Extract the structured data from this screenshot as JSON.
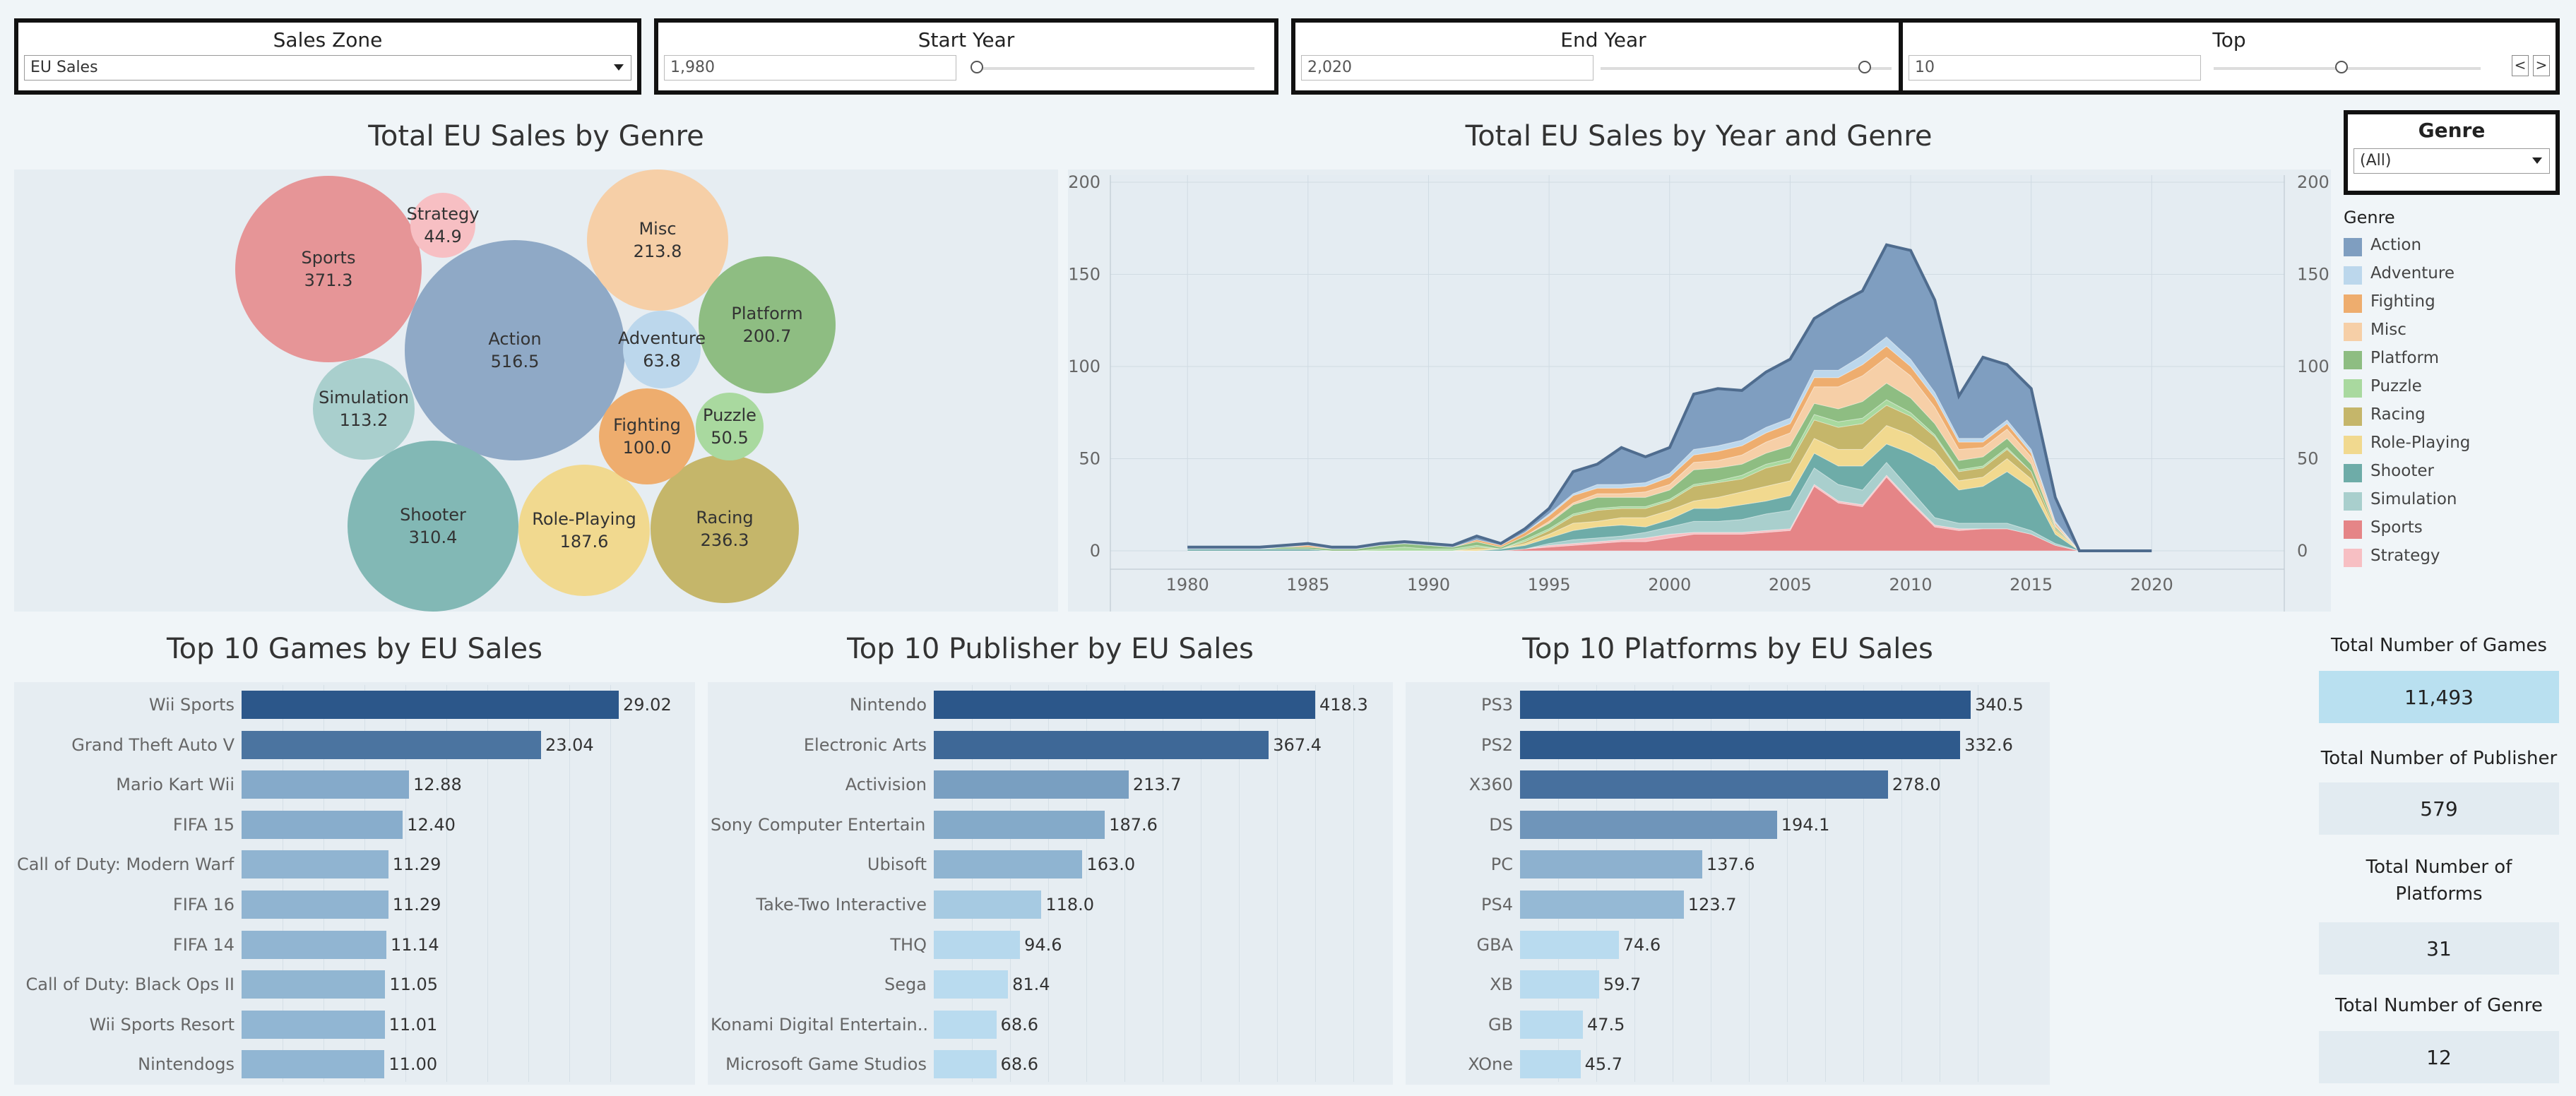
{
  "filters": {
    "sales_zone": {
      "title": "Sales Zone",
      "value": "EU Sales"
    },
    "start_year": {
      "title": "Start Year",
      "value": "1,980"
    },
    "end_year": {
      "title": "End Year",
      "value": "2,020"
    },
    "top": {
      "title": "Top",
      "value": "10",
      "prev": "<",
      "next": ">"
    },
    "genre": {
      "title": "Genre",
      "value": "(All)"
    }
  },
  "bubble_chart": {
    "title": "Total EU Sales by Genre",
    "bubbles": [
      {
        "name": "Action",
        "value": "516.5",
        "color": "#8fa9c6"
      },
      {
        "name": "Sports",
        "value": "371.3",
        "color": "#e69597"
      },
      {
        "name": "Shooter",
        "value": "310.4",
        "color": "#82b8b5"
      },
      {
        "name": "Racing",
        "value": "236.3",
        "color": "#c5b66a"
      },
      {
        "name": "Misc",
        "value": "213.8",
        "color": "#f6cfa7"
      },
      {
        "name": "Platform",
        "value": "200.7",
        "color": "#8ebd82"
      },
      {
        "name": "Role-Playing",
        "value": "187.6",
        "color": "#f1d98f"
      },
      {
        "name": "Simulation",
        "value": "113.2",
        "color": "#a9cfcd"
      },
      {
        "name": "Fighting",
        "value": "100.0",
        "color": "#eead6e"
      },
      {
        "name": "Adventure",
        "value": "63.8",
        "color": "#bcd7ec"
      },
      {
        "name": "Puzzle",
        "value": "50.5",
        "color": "#a9d99f"
      },
      {
        "name": "Strategy",
        "value": "44.9",
        "color": "#f7bfc3"
      }
    ]
  },
  "area_chart": {
    "title": "Total EU Sales by Year and Genre"
  },
  "legend": {
    "title": "Genre",
    "items": [
      {
        "label": "Action",
        "color": "#7f9ec0"
      },
      {
        "label": "Adventure",
        "color": "#bcd7ec"
      },
      {
        "label": "Fighting",
        "color": "#eead6e"
      },
      {
        "label": "Misc",
        "color": "#f6cfa7"
      },
      {
        "label": "Platform",
        "color": "#8ebd82"
      },
      {
        "label": "Puzzle",
        "color": "#a9d99f"
      },
      {
        "label": "Racing",
        "color": "#c5b66a"
      },
      {
        "label": "Role-Playing",
        "color": "#f1d98f"
      },
      {
        "label": "Shooter",
        "color": "#6eaca8"
      },
      {
        "label": "Simulation",
        "color": "#a9cfcd"
      },
      {
        "label": "Sports",
        "color": "#e58587"
      },
      {
        "label": "Strategy",
        "color": "#f7bfc3"
      }
    ]
  },
  "games_chart": {
    "title": "Top 10 Games by EU Sales",
    "rows": [
      {
        "label": "Wii Sports",
        "value": "29.02"
      },
      {
        "label": "Grand Theft Auto V",
        "value": "23.04"
      },
      {
        "label": "Mario Kart Wii",
        "value": "12.88"
      },
      {
        "label": "FIFA 15",
        "value": "12.40"
      },
      {
        "label": "Call of Duty: Modern Warf..",
        "value": "11.29"
      },
      {
        "label": "FIFA 16",
        "value": "11.29"
      },
      {
        "label": "FIFA 14",
        "value": "11.14"
      },
      {
        "label": "Call of Duty: Black Ops II",
        "value": "11.05"
      },
      {
        "label": "Wii Sports Resort",
        "value": "11.01"
      },
      {
        "label": "Nintendogs",
        "value": "11.00"
      }
    ]
  },
  "publisher_chart": {
    "title": "Top 10 Publisher by EU Sales",
    "rows": [
      {
        "label": "Nintendo",
        "value": "418.3"
      },
      {
        "label": "Electronic Arts",
        "value": "367.4"
      },
      {
        "label": "Activision",
        "value": "213.7"
      },
      {
        "label": "Sony Computer Entertain..",
        "value": "187.6"
      },
      {
        "label": "Ubisoft",
        "value": "163.0"
      },
      {
        "label": "Take-Two Interactive",
        "value": "118.0"
      },
      {
        "label": "THQ",
        "value": "94.6"
      },
      {
        "label": "Sega",
        "value": "81.4"
      },
      {
        "label": "Konami Digital Entertain..",
        "value": "68.6"
      },
      {
        "label": "Microsoft Game Studios",
        "value": "68.6"
      }
    ]
  },
  "platform_chart": {
    "title": "Top 10 Platforms by EU Sales",
    "rows": [
      {
        "label": "PS3",
        "value": "340.5"
      },
      {
        "label": "PS2",
        "value": "332.6"
      },
      {
        "label": "X360",
        "value": "278.0"
      },
      {
        "label": "DS",
        "value": "194.1"
      },
      {
        "label": "PC",
        "value": "137.6"
      },
      {
        "label": "PS4",
        "value": "123.7"
      },
      {
        "label": "GBA",
        "value": "74.6"
      },
      {
        "label": "XB",
        "value": "59.7"
      },
      {
        "label": "GB",
        "value": "47.5"
      },
      {
        "label": "XOne",
        "value": "45.7"
      }
    ]
  },
  "kpis": [
    {
      "title": "Total Number of Games",
      "value": "11,493"
    },
    {
      "title": "Total Number of Publisher",
      "value": "579"
    },
    {
      "title": "Total Number of Platforms",
      "value": "31"
    },
    {
      "title": "Total Number of Genre",
      "value": "12"
    }
  ],
  "chart_data": [
    {
      "type": "bubble",
      "title": "Total EU Sales by Genre",
      "categories": [
        "Action",
        "Sports",
        "Shooter",
        "Racing",
        "Misc",
        "Platform",
        "Role-Playing",
        "Simulation",
        "Fighting",
        "Adventure",
        "Puzzle",
        "Strategy"
      ],
      "values": [
        516.5,
        371.3,
        310.4,
        236.3,
        213.8,
        200.7,
        187.6,
        113.2,
        100.0,
        63.8,
        50.5,
        44.9
      ]
    },
    {
      "type": "area",
      "title": "Total EU Sales by Year and Genre",
      "x": [
        1980,
        1981,
        1982,
        1983,
        1984,
        1985,
        1986,
        1987,
        1988,
        1989,
        1990,
        1991,
        1992,
        1993,
        1994,
        1995,
        1996,
        1997,
        1998,
        1999,
        2000,
        2001,
        2002,
        2003,
        2004,
        2005,
        2006,
        2007,
        2008,
        2009,
        2010,
        2011,
        2012,
        2013,
        2014,
        2015,
        2016,
        2017,
        2018,
        2019,
        2020
      ],
      "xticks": [
        1980,
        1985,
        1990,
        1995,
        2000,
        2005,
        2010,
        2015,
        2020
      ],
      "ylim": [
        0,
        200
      ],
      "yticks": [
        0,
        50,
        100,
        150,
        200
      ],
      "stack_order": [
        "Sports",
        "Strategy",
        "Simulation",
        "Shooter",
        "Role-Playing",
        "Racing",
        "Puzzle",
        "Platform",
        "Misc",
        "Fighting",
        "Adventure",
        "Action"
      ],
      "series": [
        {
          "name": "Sports",
          "values": [
            0,
            0,
            0,
            0,
            0,
            0,
            0,
            0,
            0,
            0,
            0,
            0,
            0,
            0,
            1,
            2,
            3,
            4,
            5,
            5,
            7,
            9,
            9,
            9,
            10,
            11,
            35,
            26,
            24,
            40,
            26,
            13,
            11,
            12,
            12,
            9,
            3,
            0,
            0,
            0,
            0
          ]
        },
        {
          "name": "Strategy",
          "values": [
            0,
            0,
            0,
            0,
            0,
            0,
            0,
            0,
            0,
            0,
            0,
            0,
            0,
            0,
            0,
            1,
            1,
            1,
            1,
            2,
            2,
            1,
            1,
            1,
            1,
            1,
            1,
            1,
            1,
            1,
            1,
            1,
            1,
            0,
            0,
            0,
            0,
            0,
            0,
            0,
            0
          ]
        },
        {
          "name": "Simulation",
          "values": [
            0,
            0,
            0,
            0,
            0,
            0,
            0,
            0,
            0,
            0,
            0,
            0,
            0,
            0,
            0,
            1,
            2,
            2,
            2,
            3,
            4,
            6,
            6,
            7,
            9,
            10,
            9,
            9,
            8,
            7,
            6,
            4,
            3,
            3,
            3,
            2,
            1,
            0,
            0,
            0,
            0
          ]
        },
        {
          "name": "Shooter",
          "values": [
            1,
            1,
            1,
            1,
            1,
            1,
            0,
            0,
            0,
            0,
            0,
            0,
            0,
            1,
            2,
            3,
            5,
            6,
            6,
            3,
            4,
            7,
            7,
            8,
            7,
            8,
            8,
            10,
            13,
            10,
            20,
            28,
            18,
            20,
            28,
            23,
            5,
            0,
            0,
            0,
            0
          ]
        },
        {
          "name": "Role-Playing",
          "values": [
            0,
            0,
            0,
            0,
            0,
            0,
            0,
            0,
            0,
            0,
            0,
            0,
            1,
            0,
            1,
            2,
            4,
            3,
            4,
            5,
            5,
            4,
            6,
            7,
            8,
            8,
            8,
            9,
            9,
            10,
            10,
            8,
            5,
            5,
            7,
            5,
            2,
            0,
            0,
            0,
            0
          ]
        },
        {
          "name": "Racing",
          "values": [
            0,
            0,
            0,
            0,
            0,
            0,
            0,
            0,
            0,
            0,
            0,
            0,
            1,
            0,
            1,
            2,
            4,
            6,
            5,
            5,
            5,
            8,
            8,
            7,
            10,
            10,
            10,
            12,
            14,
            11,
            10,
            8,
            5,
            5,
            5,
            4,
            1,
            0,
            0,
            0,
            0
          ]
        },
        {
          "name": "Puzzle",
          "values": [
            0,
            0,
            0,
            0,
            0,
            0,
            0,
            0,
            1,
            2,
            1,
            1,
            1,
            0,
            1,
            1,
            1,
            1,
            1,
            1,
            1,
            1,
            1,
            2,
            2,
            2,
            3,
            3,
            3,
            3,
            2,
            1,
            1,
            1,
            1,
            0,
            0,
            0,
            0,
            0,
            0
          ]
        },
        {
          "name": "Platform",
          "values": [
            0,
            0,
            0,
            0,
            1,
            1,
            1,
            1,
            2,
            2,
            2,
            1,
            2,
            1,
            2,
            3,
            5,
            6,
            5,
            5,
            5,
            8,
            7,
            6,
            6,
            7,
            6,
            7,
            9,
            9,
            8,
            6,
            5,
            5,
            5,
            4,
            1,
            0,
            0,
            0,
            0
          ]
        },
        {
          "name": "Misc",
          "values": [
            0,
            0,
            0,
            0,
            0,
            0,
            0,
            0,
            0,
            0,
            0,
            0,
            0,
            0,
            0,
            1,
            1,
            2,
            2,
            3,
            3,
            4,
            4,
            5,
            6,
            7,
            9,
            12,
            14,
            14,
            12,
            9,
            6,
            5,
            5,
            4,
            1,
            0,
            0,
            0,
            0
          ]
        },
        {
          "name": "Fighting",
          "values": [
            0,
            0,
            0,
            0,
            0,
            1,
            0,
            0,
            0,
            0,
            0,
            0,
            1,
            1,
            2,
            3,
            4,
            3,
            3,
            3,
            4,
            4,
            5,
            5,
            5,
            5,
            5,
            5,
            6,
            6,
            5,
            5,
            4,
            3,
            3,
            2,
            1,
            0,
            0,
            0,
            0
          ]
        },
        {
          "name": "Adventure",
          "values": [
            0,
            0,
            0,
            0,
            0,
            0,
            0,
            0,
            0,
            0,
            0,
            0,
            0,
            0,
            0,
            1,
            1,
            2,
            2,
            2,
            2,
            3,
            3,
            3,
            3,
            3,
            4,
            4,
            5,
            5,
            4,
            3,
            2,
            2,
            2,
            2,
            1,
            0,
            0,
            0,
            0
          ]
        },
        {
          "name": "Action",
          "values": [
            1,
            1,
            1,
            1,
            1,
            1,
            1,
            1,
            1,
            1,
            1,
            1,
            2,
            1,
            2,
            3,
            12,
            11,
            20,
            14,
            14,
            30,
            31,
            27,
            30,
            32,
            28,
            36,
            35,
            50,
            59,
            50,
            23,
            44,
            30,
            33,
            13,
            0,
            0,
            0,
            0
          ]
        }
      ]
    },
    {
      "type": "bar",
      "title": "Top 10 Games by EU Sales",
      "categories": [
        "Wii Sports",
        "Grand Theft Auto V",
        "Mario Kart Wii",
        "FIFA 15",
        "Call of Duty: Modern Warf..",
        "FIFA 16",
        "FIFA 14",
        "Call of Duty: Black Ops II",
        "Wii Sports Resort",
        "Nintendogs"
      ],
      "values": [
        29.02,
        23.04,
        12.88,
        12.4,
        11.29,
        11.29,
        11.14,
        11.05,
        11.01,
        11.0
      ]
    },
    {
      "type": "bar",
      "title": "Top 10 Publisher by EU Sales",
      "categories": [
        "Nintendo",
        "Electronic Arts",
        "Activision",
        "Sony Computer Entertain..",
        "Ubisoft",
        "Take-Two Interactive",
        "THQ",
        "Sega",
        "Konami Digital Entertain..",
        "Microsoft Game Studios"
      ],
      "values": [
        418.3,
        367.4,
        213.7,
        187.6,
        163.0,
        118.0,
        94.6,
        81.4,
        68.6,
        68.6
      ]
    },
    {
      "type": "bar",
      "title": "Top 10 Platforms by EU Sales",
      "categories": [
        "PS3",
        "PS2",
        "X360",
        "DS",
        "PC",
        "PS4",
        "GBA",
        "XB",
        "GB",
        "XOne"
      ],
      "values": [
        340.5,
        332.6,
        278.0,
        194.1,
        137.6,
        123.7,
        74.6,
        59.7,
        47.5,
        45.7
      ]
    }
  ]
}
